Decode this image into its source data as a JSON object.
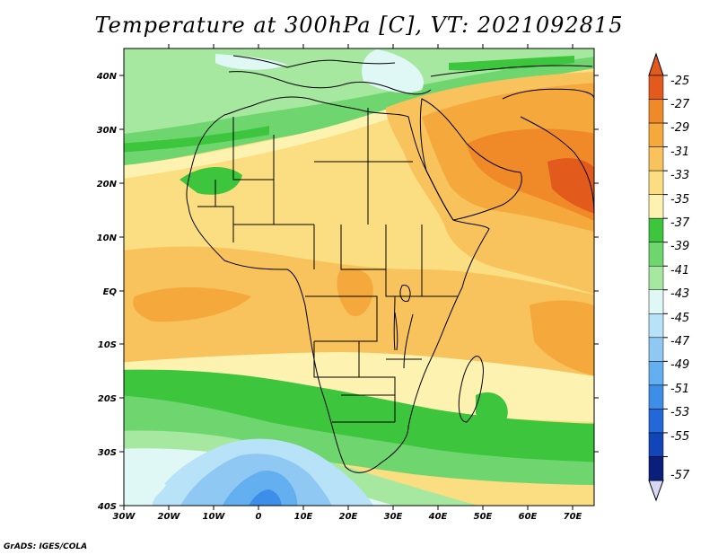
{
  "title": "Temperature at 300hPa [C], VT: 2021092815",
  "footer": "GrADS: IGES/COLA",
  "lat_ticks": [
    "40N",
    "30N",
    "20N",
    "10N",
    "EQ",
    "10S",
    "20S",
    "30S",
    "40S"
  ],
  "lon_ticks": [
    "30W",
    "20W",
    "10W",
    "0",
    "10E",
    "20E",
    "30E",
    "40E",
    "50E",
    "60E",
    "70E"
  ],
  "colorbar": {
    "levels": [
      "-25",
      "-27",
      "-29",
      "-31",
      "-33",
      "-35",
      "-37",
      "-39",
      "-41",
      "-43",
      "-45",
      "-47",
      "-49",
      "-51",
      "-53",
      "-55",
      "-57"
    ],
    "colors": [
      "#e25a1c",
      "#f08a28",
      "#f5a93c",
      "#f8c35c",
      "#fbdd82",
      "#fdf2b0",
      "#3dc53d",
      "#6fd66f",
      "#a6e8a0",
      "#dff8f5",
      "#b7e2f7",
      "#8fc8f2",
      "#64aff0",
      "#3d8ee8",
      "#2368d8",
      "#1245b8",
      "#0a1f7a",
      "#d8d8f6"
    ]
  }
}
